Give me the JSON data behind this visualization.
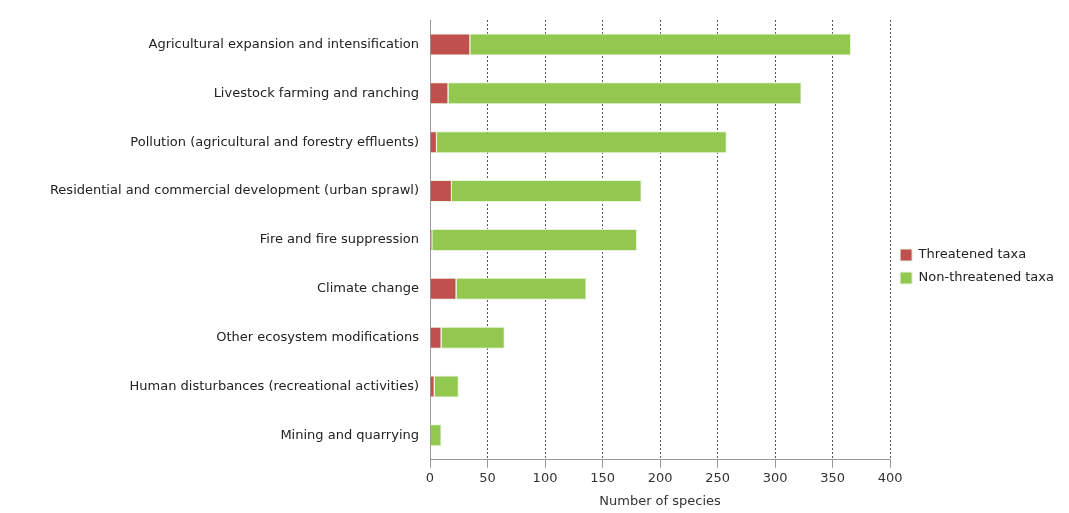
{
  "chart_data": {
    "type": "bar",
    "orientation": "horizontal",
    "stacked": true,
    "xlabel": "Number of species",
    "categories": [
      "Agricultural expansion and intensification",
      "Livestock farming and ranching",
      "Pollution (agricultural and forestry effluents)",
      "Residential and commercial development (urban sprawl)",
      "Fire and fire suppression",
      "Climate change",
      "Other ecosystem modifications",
      "Human disturbances (recreational activities)",
      "Mining and quarrying"
    ],
    "series": [
      {
        "name": "Threatened taxa",
        "color": "#c0504d",
        "values": [
          35,
          16,
          6,
          19,
          2,
          23,
          10,
          4,
          0
        ]
      },
      {
        "name": "Non-threatened taxa",
        "color": "#92c850",
        "values": [
          331,
          307,
          252,
          165,
          178,
          113,
          55,
          21,
          10
        ]
      }
    ],
    "xlim": [
      0,
      400
    ],
    "xticks": [
      0,
      50,
      100,
      150,
      200,
      250,
      300,
      350,
      400
    ],
    "grid": "x",
    "legend": "right"
  }
}
